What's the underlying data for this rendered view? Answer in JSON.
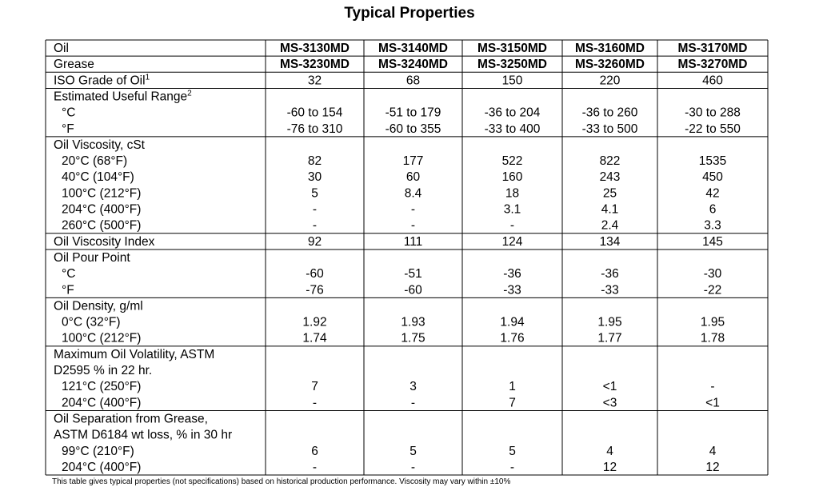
{
  "title": "Typical Properties",
  "table": {
    "header": [
      {
        "label": "Oil",
        "values": [
          "MS-3130MD",
          "MS-3140MD",
          "MS-3150MD",
          "MS-3160MD",
          "MS-3170MD"
        ]
      },
      {
        "label": "Grease",
        "values": [
          "MS-3230MD",
          "MS-3240MD",
          "MS-3250MD",
          "MS-3260MD",
          "MS-3270MD"
        ]
      }
    ],
    "sections": [
      {
        "heading": [
          {
            "label": "ISO Grade of Oil",
            "note": "1"
          }
        ],
        "values": [
          "32",
          "68",
          "150",
          "220",
          "460"
        ],
        "items": []
      },
      {
        "heading": [
          {
            "label": "Estimated Useful Range",
            "note": "2"
          }
        ],
        "items": [
          {
            "label": "°C",
            "values": [
              "-60 to 154",
              "-51 to 179",
              "-36 to 204",
              "-36 to 260",
              "-30 to 288"
            ]
          },
          {
            "label": "°F",
            "values": [
              "-76 to 310",
              "-60 to 355",
              "-33 to 400",
              "-33 to 500",
              "-22 to 550"
            ]
          }
        ]
      },
      {
        "heading": [
          {
            "label": "Oil Viscosity, cSt"
          }
        ],
        "items": [
          {
            "label": "20°C (68°F)",
            "values": [
              "82",
              "177",
              "522",
              "822",
              "1535"
            ]
          },
          {
            "label": "40°C (104°F)",
            "values": [
              "30",
              "60",
              "160",
              "243",
              "450"
            ]
          },
          {
            "label": "100°C (212°F)",
            "values": [
              "5",
              "8.4",
              "18",
              "25",
              "42"
            ]
          },
          {
            "label": "204°C (400°F)",
            "values": [
              "-",
              "-",
              "3.1",
              "4.1",
              "6"
            ]
          },
          {
            "label": "260°C (500°F)",
            "values": [
              "-",
              "-",
              "-",
              "2.4",
              "3.3"
            ]
          }
        ]
      },
      {
        "heading": [
          {
            "label": "Oil Viscosity Index"
          }
        ],
        "values": [
          "92",
          "111",
          "124",
          "134",
          "145"
        ],
        "items": []
      },
      {
        "heading": [
          {
            "label": "Oil Pour Point"
          }
        ],
        "items": [
          {
            "label": "°C",
            "values": [
              "-60",
              "-51",
              "-36",
              "-36",
              "-30"
            ]
          },
          {
            "label": "°F",
            "values": [
              "-76",
              "-60",
              "-33",
              "-33",
              "-22"
            ]
          }
        ]
      },
      {
        "heading": [
          {
            "label": "Oil Density, g/ml"
          }
        ],
        "items": [
          {
            "label": "0°C (32°F)",
            "values": [
              "1.92",
              "1.93",
              "1.94",
              "1.95",
              "1.95"
            ]
          },
          {
            "label": "100°C (212°F)",
            "values": [
              "1.74",
              "1.75",
              "1.76",
              "1.77",
              "1.78"
            ]
          }
        ]
      },
      {
        "heading": [
          {
            "label": "Maximum Oil Volatility, ASTM"
          },
          {
            "label": "D2595 % in 22 hr."
          }
        ],
        "items": [
          {
            "label": "121°C (250°F)",
            "values": [
              "7",
              "3",
              "1",
              "<1",
              "-"
            ]
          },
          {
            "label": "204°C (400°F)",
            "values": [
              "-",
              "-",
              "7",
              "<3",
              "<1"
            ]
          }
        ]
      },
      {
        "heading": [
          {
            "label": "Oil Separation from Grease,"
          },
          {
            "label": "ASTM D6184 wt loss, % in 30 hr"
          }
        ],
        "items": [
          {
            "label": "99°C (210°F)",
            "values": [
              "6",
              "5",
              "5",
              "4",
              "4"
            ]
          },
          {
            "label": "204°C (400°F)",
            "values": [
              "-",
              "-",
              "-",
              "12",
              "12"
            ]
          }
        ]
      }
    ]
  },
  "footnote": "This table gives typical properties (not specifications) based on historical production performance. Viscosity may vary within ±10%"
}
